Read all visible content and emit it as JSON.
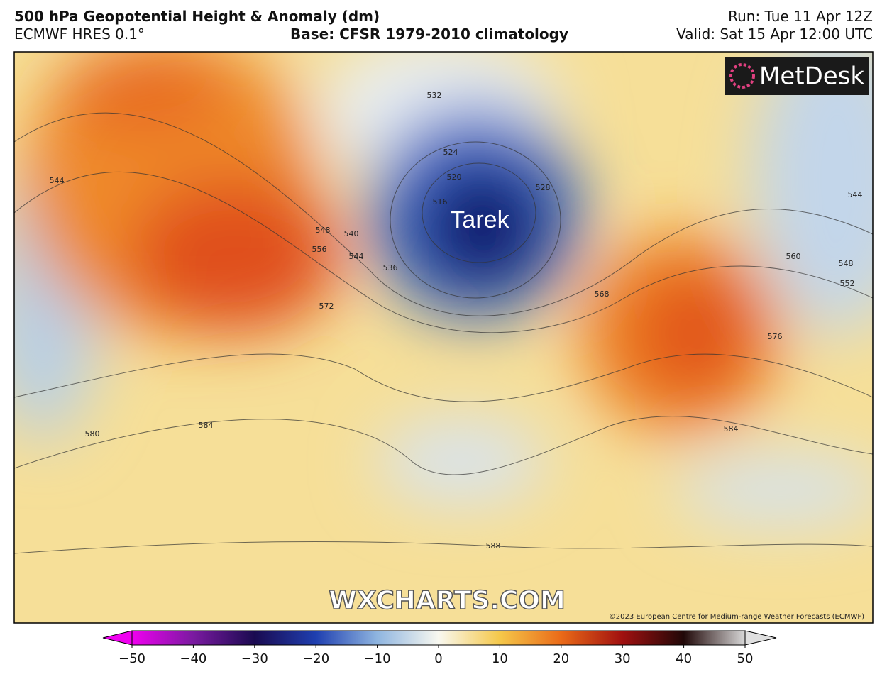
{
  "header": {
    "title": "500 hPa Geopotential Height & Anomaly (dm)",
    "model": "ECMWF HRES 0.1°",
    "base": "Base: CFSR 1979-2010 climatology",
    "run": "Run: Tue 11 Apr 12Z",
    "valid": "Valid: Sat 15 Apr 12:00 UTC"
  },
  "map": {
    "storm_label": "Tarek",
    "logo": "MetDesk",
    "watermark": "WXCHARTS.COM",
    "copyright": "©2023 European Centre for Medium-range Weather Forecasts (ECMWF)",
    "contour_labels": [
      532,
      524,
      520,
      516,
      528,
      544,
      548,
      540,
      544,
      536,
      556,
      572,
      568,
      560,
      548,
      552,
      544,
      576,
      584,
      584,
      580,
      588
    ]
  },
  "colorbar": {
    "ticks": [
      {
        "value": -50,
        "label": "−50"
      },
      {
        "value": -40,
        "label": "−40"
      },
      {
        "value": -30,
        "label": "−30"
      },
      {
        "value": -20,
        "label": "−20"
      },
      {
        "value": -10,
        "label": "−10"
      },
      0,
      10,
      20,
      30,
      40,
      50
    ]
  }
}
